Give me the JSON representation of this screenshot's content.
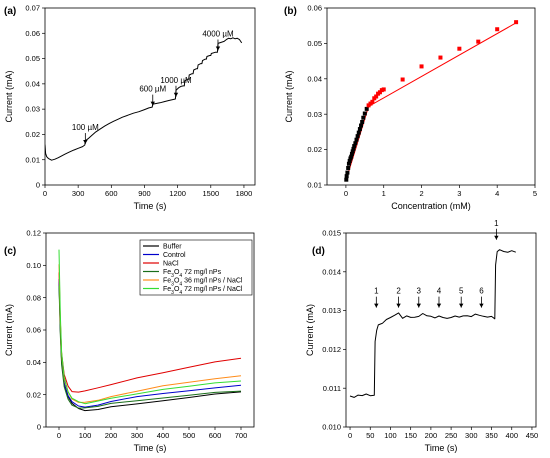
{
  "chart_data": [
    {
      "panel": "(a)",
      "type": "line",
      "xlabel": "Time (s)",
      "ylabel": "Current (mA)",
      "xlim": [
        0,
        1900
      ],
      "ylim": [
        0,
        0.07
      ],
      "xticks": [
        0,
        300,
        600,
        900,
        1200,
        1500,
        1800
      ],
      "yticks": [
        0,
        0.01,
        0.02,
        0.03,
        0.04,
        0.05,
        0.06,
        0.07
      ],
      "xtick_labels": [
        "0",
        "300",
        "600",
        "900",
        "1200",
        "1500",
        "1800"
      ],
      "ytick_labels": [
        "0",
        "0.01",
        "0.02",
        "0.03",
        "0.04",
        "0.05",
        "0.06",
        "0.07"
      ],
      "series": [
        {
          "color": "#000000",
          "x": [
            0,
            5,
            15,
            30,
            60,
            90,
            120,
            150,
            180,
            220,
            260,
            300,
            340,
            360,
            365,
            390,
            420,
            460,
            500,
            540,
            580,
            620,
            660,
            700,
            750,
            800,
            850,
            900,
            940,
            970,
            975,
            1000,
            1040,
            1080,
            1120,
            1160,
            1180,
            1185,
            1210,
            1230,
            1250,
            1260,
            1265,
            1290,
            1300,
            1305,
            1330,
            1340,
            1345,
            1370,
            1380,
            1385,
            1410,
            1420,
            1425,
            1450,
            1460,
            1465,
            1490,
            1500,
            1505,
            1540,
            1560,
            1565,
            1600,
            1620,
            1640,
            1660,
            1680,
            1700,
            1720,
            1740,
            1760,
            1780
          ],
          "y": [
            0.016,
            0.0125,
            0.0112,
            0.0105,
            0.0098,
            0.0102,
            0.0108,
            0.0115,
            0.0122,
            0.013,
            0.0138,
            0.0145,
            0.0152,
            0.0158,
            0.0175,
            0.0183,
            0.0195,
            0.021,
            0.0222,
            0.0233,
            0.0243,
            0.0252,
            0.026,
            0.0268,
            0.0276,
            0.0284,
            0.029,
            0.0298,
            0.0305,
            0.0308,
            0.032,
            0.0322,
            0.0325,
            0.033,
            0.0334,
            0.0338,
            0.034,
            0.0375,
            0.0385,
            0.039,
            0.0392,
            0.0392,
            0.0412,
            0.0418,
            0.0418,
            0.0435,
            0.044,
            0.044,
            0.0455,
            0.046,
            0.046,
            0.0475,
            0.048,
            0.048,
            0.0492,
            0.0498,
            0.0498,
            0.0508,
            0.0512,
            0.0512,
            0.052,
            0.0525,
            0.0525,
            0.056,
            0.0565,
            0.0568,
            0.0575,
            0.058,
            0.0578,
            0.0582,
            0.0578,
            0.058,
            0.0575,
            0.0562
          ]
        }
      ],
      "annotations": [
        {
          "text": "100 µM",
          "x": 365,
          "y": 0.0158
        },
        {
          "text": "600 µM",
          "x": 975,
          "y": 0.031
        },
        {
          "text": "1000 µM",
          "x": 1185,
          "y": 0.0345
        },
        {
          "text": "4000 µM",
          "x": 1565,
          "y": 0.0528
        }
      ]
    },
    {
      "panel": "(b)",
      "type": "scatter",
      "xlabel": "Concentration (mM)",
      "ylabel": "Current (mA)",
      "xlim": [
        -0.5,
        5
      ],
      "ylim": [
        0.01,
        0.06
      ],
      "xticks": [
        0,
        1,
        2,
        3,
        4,
        5
      ],
      "yticks": [
        0.01,
        0.02,
        0.03,
        0.04,
        0.05,
        0.06
      ],
      "xtick_labels": [
        "0",
        "1",
        "2",
        "3",
        "4",
        "5"
      ],
      "ytick_labels": [
        "0.01",
        "0.02",
        "0.03",
        "0.04",
        "0.05",
        "0.06"
      ],
      "series": [
        {
          "color": "#000000",
          "x": [
            0.01,
            0.02,
            0.04,
            0.06,
            0.08,
            0.1,
            0.12,
            0.14,
            0.16,
            0.18,
            0.2,
            0.22,
            0.25,
            0.28,
            0.31,
            0.34,
            0.37,
            0.4,
            0.43,
            0.46,
            0.5,
            0.55
          ],
          "y": [
            0.0115,
            0.0125,
            0.0135,
            0.0148,
            0.016,
            0.0168,
            0.0175,
            0.018,
            0.0188,
            0.0195,
            0.0202,
            0.021,
            0.0218,
            0.0228,
            0.0238,
            0.0248,
            0.0258,
            0.0268,
            0.0278,
            0.029,
            0.0302,
            0.0315
          ]
        },
        {
          "color": "#ff0000",
          "x": [
            0.6,
            0.65,
            0.7,
            0.75,
            0.8,
            0.85,
            0.9,
            0.95,
            1.0,
            1.5,
            2.0,
            2.5,
            3.0,
            3.5,
            4.0,
            4.5
          ],
          "y": [
            0.0325,
            0.033,
            0.0335,
            0.0345,
            0.035,
            0.0358,
            0.0362,
            0.0368,
            0.037,
            0.0398,
            0.0435,
            0.046,
            0.0485,
            0.0505,
            0.054,
            0.056
          ]
        }
      ],
      "fit_lines": [
        {
          "color": "#ff0000",
          "x": [
            0.0,
            0.6
          ],
          "y": [
            0.0112,
            0.0322
          ]
        },
        {
          "color": "#ff0000",
          "x": [
            0.6,
            4.5
          ],
          "y": [
            0.0322,
            0.0558
          ]
        }
      ]
    },
    {
      "panel": "(c)",
      "type": "line",
      "xlabel": "Time (s)",
      "ylabel": "Current (mA)",
      "xlim": [
        -50,
        750
      ],
      "ylim": [
        0,
        0.12
      ],
      "xticks": [
        0,
        100,
        200,
        300,
        400,
        500,
        600,
        700
      ],
      "yticks": [
        0,
        0.02,
        0.04,
        0.06,
        0.08,
        0.1,
        0.12
      ],
      "xtick_labels": [
        "0",
        "100",
        "200",
        "300",
        "400",
        "500",
        "600",
        "700"
      ],
      "ytick_labels": [
        "0",
        "0.02",
        "0.04",
        "0.06",
        "0.08",
        "0.10",
        "0.12"
      ],
      "legend_position": "top-right",
      "series": [
        {
          "name": "Buffer",
          "color": "#000000",
          "x": [
            0,
            5,
            10,
            20,
            35,
            50,
            75,
            100,
            150,
            200,
            300,
            400,
            500,
            600,
            700
          ],
          "y": [
            0.09,
            0.06,
            0.04,
            0.026,
            0.018,
            0.014,
            0.011,
            0.01,
            0.011,
            0.013,
            0.015,
            0.017,
            0.019,
            0.021,
            0.022
          ]
        },
        {
          "name": "Control",
          "color": "#0000cc",
          "x": [
            0,
            5,
            10,
            20,
            35,
            50,
            75,
            100,
            150,
            200,
            300,
            400,
            500,
            600,
            700
          ],
          "y": [
            0.092,
            0.062,
            0.042,
            0.028,
            0.02,
            0.016,
            0.013,
            0.012,
            0.013,
            0.015,
            0.018,
            0.02,
            0.022,
            0.024,
            0.026
          ]
        },
        {
          "name": "NaCl",
          "color": "#e00000",
          "x": [
            0,
            5,
            10,
            20,
            35,
            50,
            75,
            100,
            150,
            200,
            300,
            400,
            500,
            600,
            700
          ],
          "y": [
            0.095,
            0.065,
            0.045,
            0.032,
            0.025,
            0.022,
            0.022,
            0.023,
            0.025,
            0.027,
            0.031,
            0.034,
            0.037,
            0.04,
            0.042
          ]
        },
        {
          "name_parts": [
            "Fe",
            "3",
            "O",
            "4",
            " 72 mg/l nPs"
          ],
          "color": "#1a6e1a",
          "x": [
            0,
            5,
            10,
            20,
            35,
            50,
            75,
            100,
            150,
            200,
            300,
            400,
            500,
            600,
            700
          ],
          "y": [
            0.088,
            0.058,
            0.039,
            0.025,
            0.017,
            0.013,
            0.011,
            0.011,
            0.012,
            0.014,
            0.016,
            0.018,
            0.02,
            0.022,
            0.023
          ]
        },
        {
          "name_parts": [
            "Fe",
            "3",
            "O",
            "4",
            " 36 mg/l nPs / NaCl"
          ],
          "color": "#ff8c1a",
          "x": [
            0,
            5,
            10,
            20,
            35,
            50,
            75,
            100,
            150,
            200,
            300,
            400,
            500,
            600,
            700
          ],
          "y": [
            0.1,
            0.066,
            0.045,
            0.03,
            0.022,
            0.018,
            0.016,
            0.016,
            0.017,
            0.019,
            0.022,
            0.025,
            0.027,
            0.029,
            0.031
          ]
        },
        {
          "name_parts": [
            "Fe",
            "3",
            "O",
            "4",
            " 72 mg/l nPs / NaCl"
          ],
          "color": "#33dd33",
          "x": [
            0,
            5,
            10,
            20,
            35,
            50,
            75,
            100,
            150,
            200,
            300,
            400,
            500,
            600,
            700
          ],
          "y": [
            0.11,
            0.07,
            0.046,
            0.03,
            0.021,
            0.017,
            0.015,
            0.014,
            0.016,
            0.018,
            0.021,
            0.024,
            0.026,
            0.028,
            0.029
          ]
        }
      ]
    },
    {
      "panel": "(d)",
      "type": "line",
      "xlabel": "Time (s)",
      "ylabel": "Current (mA)",
      "xlim": [
        -10,
        460
      ],
      "ylim": [
        0.01,
        0.015
      ],
      "xticks": [
        0,
        50,
        100,
        150,
        200,
        250,
        300,
        350,
        400,
        450
      ],
      "yticks": [
        0.01,
        0.011,
        0.012,
        0.013,
        0.014,
        0.015
      ],
      "xtick_labels": [
        "0",
        "50",
        "100",
        "150",
        "200",
        "250",
        "300",
        "350",
        "400",
        "450"
      ],
      "ytick_labels": [
        "0.010",
        "0.011",
        "0.012",
        "0.013",
        "0.014",
        "0.015"
      ],
      "series": [
        {
          "color": "#000000",
          "x": [
            0,
            10,
            20,
            30,
            40,
            50,
            60,
            62,
            66,
            70,
            80,
            90,
            100,
            110,
            120,
            130,
            140,
            150,
            160,
            170,
            180,
            190,
            200,
            210,
            220,
            230,
            240,
            250,
            260,
            270,
            280,
            290,
            300,
            310,
            320,
            330,
            340,
            350,
            358,
            360,
            364,
            370,
            380,
            390,
            400,
            410
          ],
          "y": [
            0.0108,
            0.01075,
            0.0108,
            0.01078,
            0.01082,
            0.01078,
            0.0108,
            0.0122,
            0.0125,
            0.01265,
            0.0127,
            0.0128,
            0.01285,
            0.0129,
            0.01295,
            0.0128,
            0.01285,
            0.0128,
            0.0128,
            0.01282,
            0.0129,
            0.01285,
            0.01285,
            0.01282,
            0.01288,
            0.01285,
            0.01283,
            0.01285,
            0.01288,
            0.01284,
            0.01286,
            0.01285,
            0.01282,
            0.01288,
            0.01285,
            0.01283,
            0.01282,
            0.01285,
            0.0128,
            0.0142,
            0.01455,
            0.0146,
            0.01455,
            0.01452,
            0.01455,
            0.0145
          ]
        }
      ],
      "annotations": [
        {
          "text": "1",
          "x": 65,
          "y": 0.01305
        },
        {
          "text": "2",
          "x": 120,
          "y": 0.01305
        },
        {
          "text": "3",
          "x": 170,
          "y": 0.01305
        },
        {
          "text": "4",
          "x": 220,
          "y": 0.01305
        },
        {
          "text": "5",
          "x": 275,
          "y": 0.01305
        },
        {
          "text": "6",
          "x": 325,
          "y": 0.01305
        },
        {
          "text": "1",
          "x": 362,
          "y": 0.0148
        }
      ]
    }
  ]
}
